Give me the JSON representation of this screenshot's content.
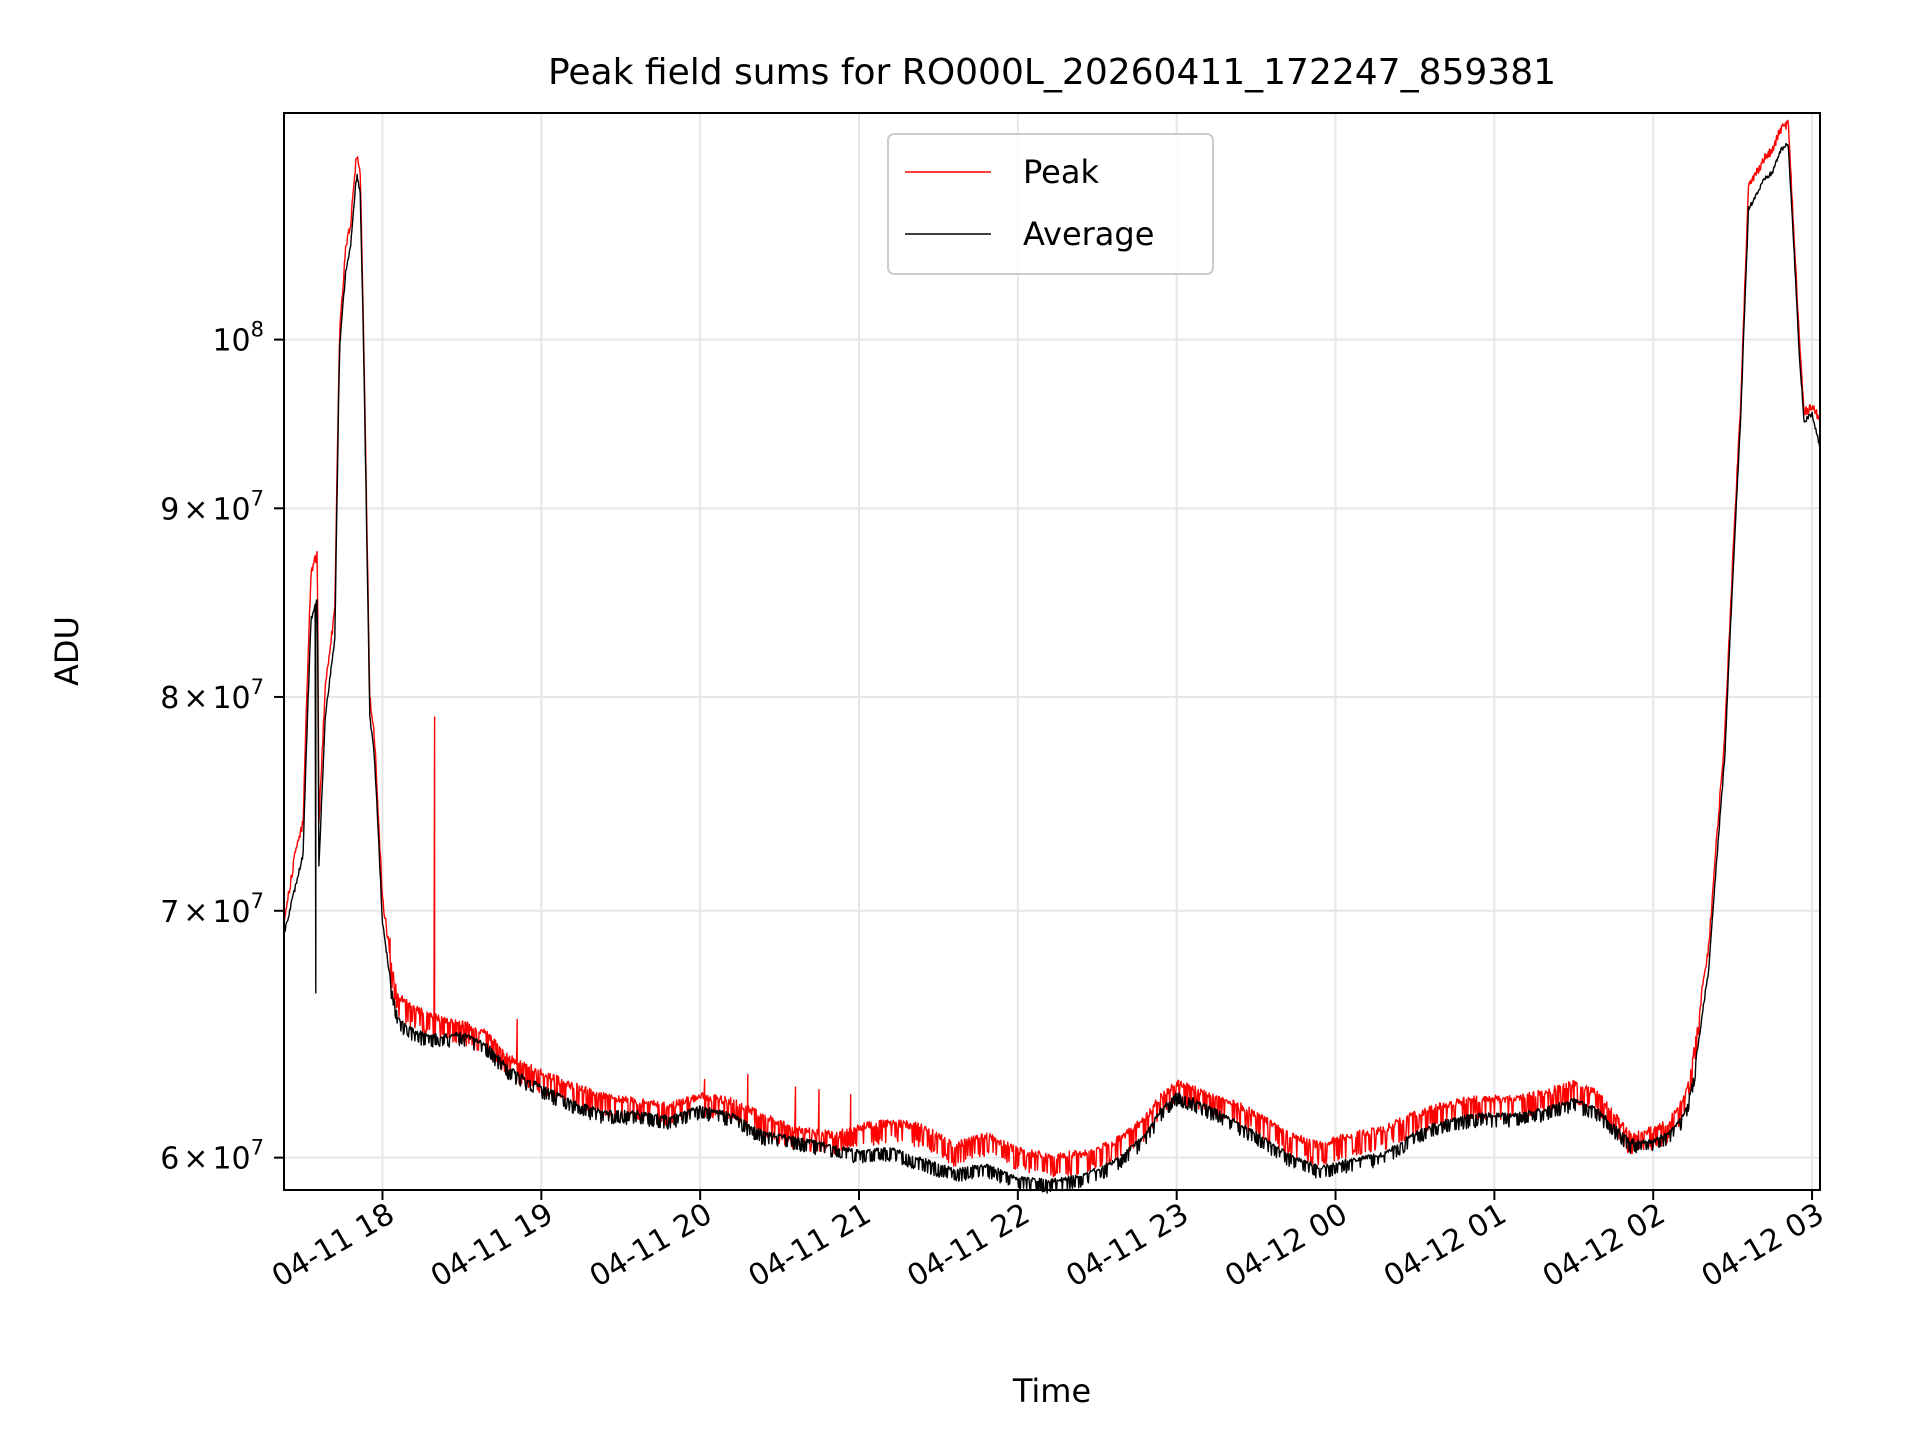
{
  "chart_data": {
    "type": "line",
    "title": "Peak field sums for RO000L_20260411_172247_859381",
    "xlabel": "Time",
    "ylabel": "ADU",
    "yscale": "log",
    "grid": true,
    "legend_position": "top-center",
    "xlim": [
      -0.62,
      9.05
    ],
    "ylim": [
      58800000,
      115200000
    ],
    "x_unit": "hours after 04-11 18:00",
    "x_ticks": [
      {
        "value": 0,
        "label": "04-11 18"
      },
      {
        "value": 1,
        "label": "04-11 19"
      },
      {
        "value": 2,
        "label": "04-11 20"
      },
      {
        "value": 3,
        "label": "04-11 21"
      },
      {
        "value": 4,
        "label": "04-11 22"
      },
      {
        "value": 5,
        "label": "04-11 23"
      },
      {
        "value": 6,
        "label": "04-12 00"
      },
      {
        "value": 7,
        "label": "04-12 01"
      },
      {
        "value": 8,
        "label": "04-12 02"
      },
      {
        "value": 9,
        "label": "04-12 03"
      }
    ],
    "y_ticks": [
      {
        "value": 60000000,
        "mantissa": "6",
        "exponent": "7"
      },
      {
        "value": 70000000,
        "mantissa": "7",
        "exponent": "7"
      },
      {
        "value": 80000000,
        "mantissa": "8",
        "exponent": "7"
      },
      {
        "value": 90000000,
        "mantissa": "9",
        "exponent": "7"
      },
      {
        "value": 100000000,
        "mantissa": "",
        "exponent": "8"
      }
    ],
    "series": [
      {
        "name": "Peak",
        "color": "#ff0000",
        "noise": 0.007,
        "points": [
          [
            -0.62,
            69500000
          ],
          [
            -0.55,
            72500000
          ],
          [
            -0.5,
            74000000
          ],
          [
            -0.45,
            86500000
          ],
          [
            -0.41,
            87500000
          ],
          [
            -0.4,
            74000000
          ],
          [
            -0.36,
            80500000
          ],
          [
            -0.3,
            84500000
          ],
          [
            -0.27,
            100500000
          ],
          [
            -0.23,
            106000000
          ],
          [
            -0.2,
            107500000
          ],
          [
            -0.17,
            111500000
          ],
          [
            -0.16,
            112200000
          ],
          [
            -0.14,
            111000000
          ],
          [
            -0.12,
            101000000
          ],
          [
            -0.1,
            90000000
          ],
          [
            -0.08,
            80000000
          ],
          [
            -0.05,
            78000000
          ],
          [
            -0.02,
            73500000
          ],
          [
            0,
            70500000
          ],
          [
            0.05,
            68000000
          ],
          [
            0.1,
            66500000
          ],
          [
            0.2,
            66000000
          ],
          [
            0.35,
            65600000
          ],
          [
            0.5,
            65400000
          ],
          [
            0.65,
            65000000
          ],
          [
            0.8,
            64000000
          ],
          [
            1.0,
            63400000
          ],
          [
            1.2,
            62900000
          ],
          [
            1.4,
            62500000
          ],
          [
            1.6,
            62300000
          ],
          [
            1.8,
            62100000
          ],
          [
            2.0,
            62500000
          ],
          [
            2.2,
            62300000
          ],
          [
            2.4,
            61700000
          ],
          [
            2.6,
            61200000
          ],
          [
            2.85,
            61000000
          ],
          [
            3.0,
            61300000
          ],
          [
            3.2,
            61500000
          ],
          [
            3.4,
            61300000
          ],
          [
            3.6,
            60600000
          ],
          [
            3.8,
            61000000
          ],
          [
            4.0,
            60400000
          ],
          [
            4.2,
            60200000
          ],
          [
            4.4,
            60300000
          ],
          [
            4.6,
            60700000
          ],
          [
            4.8,
            61600000
          ],
          [
            4.9,
            62500000
          ],
          [
            5.0,
            63000000
          ],
          [
            5.1,
            62800000
          ],
          [
            5.3,
            62400000
          ],
          [
            5.5,
            61800000
          ],
          [
            5.7,
            61000000
          ],
          [
            5.9,
            60600000
          ],
          [
            6.1,
            61000000
          ],
          [
            6.3,
            61200000
          ],
          [
            6.5,
            61800000
          ],
          [
            6.7,
            62200000
          ],
          [
            6.9,
            62400000
          ],
          [
            7.1,
            62400000
          ],
          [
            7.3,
            62600000
          ],
          [
            7.5,
            63000000
          ],
          [
            7.65,
            62600000
          ],
          [
            7.85,
            61000000
          ],
          [
            8.0,
            61200000
          ],
          [
            8.1,
            61500000
          ],
          [
            8.2,
            62500000
          ],
          [
            8.25,
            64000000
          ],
          [
            8.35,
            68500000
          ],
          [
            8.45,
            78000000
          ],
          [
            8.55,
            96000000
          ],
          [
            8.6,
            110000000
          ],
          [
            8.7,
            112000000
          ],
          [
            8.75,
            112500000
          ],
          [
            8.8,
            114000000
          ],
          [
            8.85,
            114500000
          ],
          [
            8.88,
            108000000
          ],
          [
            8.92,
            100000000
          ],
          [
            8.95,
            95500000
          ],
          [
            9.0,
            96000000
          ],
          [
            9.05,
            95000000
          ]
        ],
        "spikes": [
          [
            0.33,
            79000000
          ],
          [
            0.05,
            68800000
          ],
          [
            0.85,
            65400000
          ],
          [
            2.03,
            63000000
          ],
          [
            2.3,
            63200000
          ],
          [
            2.6,
            62700000
          ],
          [
            2.75,
            62600000
          ],
          [
            2.95,
            62400000
          ]
        ]
      },
      {
        "name": "Average",
        "color": "#000000",
        "noise": 0.004,
        "points": [
          [
            -0.62,
            69000000
          ],
          [
            -0.55,
            71000000
          ],
          [
            -0.5,
            72500000
          ],
          [
            -0.45,
            84000000
          ],
          [
            -0.41,
            85000000
          ],
          [
            -0.4,
            72000000
          ],
          [
            -0.36,
            79000000
          ],
          [
            -0.3,
            83000000
          ],
          [
            -0.27,
            99500000
          ],
          [
            -0.23,
            104500000
          ],
          [
            -0.2,
            106000000
          ],
          [
            -0.17,
            110000000
          ],
          [
            -0.16,
            110800000
          ],
          [
            -0.14,
            109500000
          ],
          [
            -0.12,
            100000000
          ],
          [
            -0.1,
            89000000
          ],
          [
            -0.08,
            79000000
          ],
          [
            -0.05,
            77000000
          ],
          [
            -0.02,
            72500000
          ],
          [
            0,
            69500000
          ],
          [
            0.05,
            67000000
          ],
          [
            0.1,
            65500000
          ],
          [
            0.2,
            65000000
          ],
          [
            0.35,
            64800000
          ],
          [
            0.5,
            64900000
          ],
          [
            0.65,
            64500000
          ],
          [
            0.8,
            63500000
          ],
          [
            1.0,
            62800000
          ],
          [
            1.2,
            62200000
          ],
          [
            1.4,
            61800000
          ],
          [
            1.6,
            61800000
          ],
          [
            1.8,
            61600000
          ],
          [
            2.0,
            62000000
          ],
          [
            2.2,
            61700000
          ],
          [
            2.4,
            61000000
          ],
          [
            2.6,
            60800000
          ],
          [
            2.85,
            60500000
          ],
          [
            3.0,
            60300000
          ],
          [
            3.2,
            60400000
          ],
          [
            3.4,
            60000000
          ],
          [
            3.6,
            59600000
          ],
          [
            3.8,
            59800000
          ],
          [
            4.0,
            59300000
          ],
          [
            4.2,
            59200000
          ],
          [
            4.4,
            59400000
          ],
          [
            4.6,
            59900000
          ],
          [
            4.8,
            60900000
          ],
          [
            4.9,
            61900000
          ],
          [
            5.0,
            62500000
          ],
          [
            5.1,
            62300000
          ],
          [
            5.3,
            61700000
          ],
          [
            5.5,
            61000000
          ],
          [
            5.7,
            60200000
          ],
          [
            5.9,
            59700000
          ],
          [
            6.1,
            60000000
          ],
          [
            6.3,
            60200000
          ],
          [
            6.5,
            61000000
          ],
          [
            6.7,
            61500000
          ],
          [
            6.9,
            61700000
          ],
          [
            7.1,
            61700000
          ],
          [
            7.3,
            61900000
          ],
          [
            7.5,
            62300000
          ],
          [
            7.65,
            61900000
          ],
          [
            7.85,
            60700000
          ],
          [
            8.0,
            60700000
          ],
          [
            8.1,
            61000000
          ],
          [
            8.2,
            61800000
          ],
          [
            8.25,
            63000000
          ],
          [
            8.35,
            67500000
          ],
          [
            8.45,
            77000000
          ],
          [
            8.55,
            95000000
          ],
          [
            8.6,
            108500000
          ],
          [
            8.7,
            110500000
          ],
          [
            8.75,
            111000000
          ],
          [
            8.8,
            112500000
          ],
          [
            8.85,
            113000000
          ],
          [
            8.88,
            107000000
          ],
          [
            8.92,
            99000000
          ],
          [
            8.95,
            95000000
          ],
          [
            9.0,
            95500000
          ],
          [
            9.05,
            93500000
          ]
        ],
        "spikes": [
          [
            -0.42,
            66500000
          ]
        ]
      }
    ]
  }
}
